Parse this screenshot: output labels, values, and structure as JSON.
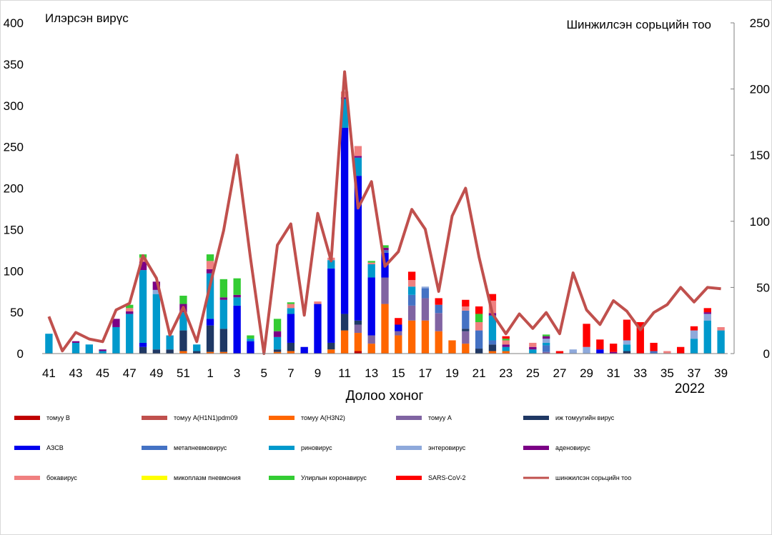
{
  "chart_data": {
    "type": "bar",
    "stacked": true,
    "title": "",
    "ylabel_left": "Илэрсэн вирүс",
    "ylabel_right": "Шинжилсэн сорьцийн тоо",
    "xlabel": "Долоо хоног",
    "year_label": "2022",
    "ylim_left": [
      0,
      400
    ],
    "yticks_left": [
      0,
      50,
      100,
      150,
      200,
      250,
      300,
      350,
      400
    ],
    "ylim_right": [
      0,
      250
    ],
    "yticks_right": [
      0,
      50,
      100,
      150,
      200,
      250
    ],
    "grid": false,
    "legend_position": "bottom",
    "categories": [
      "41",
      "42",
      "43",
      "44",
      "45",
      "46",
      "47",
      "48",
      "49",
      "50",
      "51",
      "52",
      "1",
      "2",
      "3",
      "4",
      "5",
      "6",
      "7",
      "8",
      "9",
      "10",
      "11",
      "12",
      "13",
      "14",
      "15",
      "16",
      "17",
      "18",
      "19",
      "20",
      "21",
      "22",
      "23",
      "24",
      "25",
      "26",
      "27",
      "28",
      "29",
      "30",
      "31",
      "32",
      "33",
      "34",
      "35",
      "36",
      "37",
      "38",
      "39"
    ],
    "x_tick_labels": [
      "41",
      "43",
      "45",
      "47",
      "49",
      "51",
      "1",
      "3",
      "5",
      "7",
      "9",
      "11",
      "13",
      "15",
      "17",
      "19",
      "21",
      "23",
      "25",
      "27",
      "29",
      "31",
      "33",
      "35",
      "37",
      "39"
    ],
    "series": [
      {
        "name": "томуу B",
        "color": "#c00000",
        "values": [
          0,
          0,
          0,
          0,
          0,
          0,
          0,
          0,
          0,
          0,
          0,
          0,
          0,
          0,
          0,
          0,
          0,
          0,
          0,
          0,
          0,
          0,
          0,
          3,
          0,
          0,
          0,
          0,
          0,
          0,
          0,
          0,
          0,
          0,
          0,
          0,
          0,
          0,
          0,
          0,
          0,
          0,
          0,
          0,
          0,
          0,
          0,
          0,
          0,
          0,
          0
        ]
      },
      {
        "name": "томуу A(H1N1)pdm09",
        "color": "#c0504d",
        "values": [
          0,
          0,
          0,
          0,
          0,
          0,
          0,
          0,
          0,
          0,
          0,
          0,
          0,
          0,
          0,
          0,
          0,
          0,
          0,
          0,
          0,
          0,
          0,
          0,
          0,
          0,
          0,
          0,
          0,
          0,
          0,
          0,
          0,
          0,
          0,
          0,
          0,
          0,
          0,
          0,
          0,
          0,
          0,
          0,
          0,
          0,
          0,
          0,
          0,
          0,
          0
        ]
      },
      {
        "name": "томуу A(H3N2)",
        "color": "#ff6600",
        "values": [
          0,
          0,
          0,
          0,
          0,
          0,
          0,
          0,
          0,
          0,
          3,
          0,
          2,
          2,
          0,
          0,
          0,
          2,
          3,
          0,
          0,
          5,
          28,
          22,
          12,
          60,
          22,
          40,
          40,
          27,
          16,
          12,
          0,
          3,
          3,
          0,
          0,
          0,
          0,
          0,
          0,
          0,
          0,
          0,
          0,
          0,
          0,
          0,
          0,
          0,
          0
        ]
      },
      {
        "name": "томуу A",
        "color": "#8064a2",
        "values": [
          0,
          0,
          0,
          0,
          0,
          0,
          0,
          0,
          0,
          0,
          0,
          0,
          0,
          0,
          0,
          0,
          0,
          0,
          0,
          0,
          0,
          0,
          0,
          10,
          10,
          32,
          5,
          18,
          27,
          22,
          0,
          15,
          0,
          0,
          0,
          0,
          0,
          2,
          0,
          0,
          0,
          0,
          0,
          0,
          0,
          0,
          0,
          0,
          0,
          0,
          0
        ]
      },
      {
        "name": "иж томуугийн вирус",
        "color": "#1f3864",
        "values": [
          0,
          0,
          0,
          0,
          0,
          0,
          0,
          8,
          5,
          5,
          25,
          3,
          32,
          28,
          0,
          0,
          0,
          3,
          10,
          0,
          0,
          8,
          20,
          5,
          0,
          0,
          0,
          0,
          0,
          0,
          0,
          3,
          6,
          8,
          0,
          0,
          0,
          0,
          0,
          0,
          0,
          0,
          0,
          3,
          0,
          0,
          0,
          0,
          0,
          0,
          0
        ]
      },
      {
        "name": "АЗСВ",
        "color": "#0000ee",
        "values": [
          0,
          0,
          0,
          0,
          0,
          0,
          0,
          5,
          0,
          0,
          0,
          0,
          8,
          0,
          58,
          15,
          0,
          0,
          35,
          8,
          60,
          90,
          225,
          175,
          70,
          30,
          8,
          0,
          0,
          0,
          0,
          0,
          0,
          0,
          0,
          0,
          0,
          0,
          0,
          0,
          0,
          5,
          0,
          0,
          0,
          0,
          0,
          0,
          0,
          0,
          0
        ]
      },
      {
        "name": "метапневмовирус",
        "color": "#4472c4",
        "values": [
          0,
          0,
          0,
          0,
          0,
          0,
          0,
          0,
          0,
          0,
          0,
          0,
          0,
          0,
          0,
          0,
          0,
          0,
          0,
          0,
          0,
          0,
          0,
          0,
          0,
          3,
          0,
          13,
          12,
          10,
          0,
          22,
          22,
          5,
          0,
          0,
          0,
          8,
          0,
          0,
          0,
          0,
          0,
          0,
          0,
          3,
          0,
          0,
          0,
          0,
          0
        ]
      },
      {
        "name": "риновирус",
        "color": "#0099cc",
        "values": [
          24,
          0,
          13,
          11,
          3,
          32,
          48,
          88,
          67,
          17,
          22,
          8,
          55,
          35,
          10,
          3,
          0,
          15,
          7,
          0,
          0,
          10,
          35,
          22,
          16,
          0,
          0,
          10,
          0,
          0,
          0,
          0,
          0,
          30,
          5,
          0,
          5,
          3,
          0,
          0,
          0,
          0,
          0,
          8,
          0,
          0,
          0,
          0,
          18,
          40,
          28
        ]
      },
      {
        "name": "энтеровирус",
        "color": "#8ea9db",
        "values": [
          0,
          0,
          0,
          0,
          0,
          0,
          0,
          0,
          5,
          0,
          0,
          0,
          0,
          0,
          0,
          0,
          0,
          0,
          0,
          0,
          0,
          0,
          0,
          0,
          0,
          0,
          0,
          0,
          2,
          0,
          0,
          0,
          0,
          0,
          0,
          0,
          0,
          5,
          0,
          5,
          8,
          0,
          0,
          5,
          0,
          0,
          0,
          0,
          10,
          8,
          0
        ]
      },
      {
        "name": "аденовирус",
        "color": "#7b0085",
        "values": [
          0,
          0,
          2,
          0,
          2,
          10,
          3,
          10,
          10,
          0,
          10,
          0,
          5,
          3,
          3,
          0,
          0,
          7,
          0,
          0,
          0,
          0,
          2,
          2,
          0,
          3,
          0,
          0,
          0,
          0,
          0,
          0,
          0,
          3,
          3,
          0,
          3,
          3,
          0,
          0,
          0,
          0,
          2,
          0,
          0,
          0,
          0,
          0,
          0,
          2,
          0
        ]
      },
      {
        "name": "бокавирус",
        "color": "#f08080",
        "values": [
          0,
          0,
          0,
          0,
          0,
          0,
          4,
          5,
          0,
          0,
          0,
          0,
          10,
          0,
          0,
          0,
          0,
          0,
          5,
          0,
          3,
          3,
          7,
          12,
          2,
          0,
          0,
          8,
          0,
          0,
          0,
          5,
          10,
          15,
          5,
          0,
          5,
          0,
          0,
          0,
          0,
          0,
          0,
          0,
          0,
          0,
          3,
          0,
          0,
          0,
          4
        ]
      },
      {
        "name": "микоплазм пневмония",
        "color": "#ffff00",
        "values": [
          0,
          0,
          0,
          0,
          0,
          0,
          0,
          0,
          0,
          0,
          0,
          0,
          0,
          0,
          0,
          0,
          0,
          0,
          0,
          0,
          0,
          0,
          0,
          0,
          0,
          0,
          0,
          0,
          0,
          0,
          0,
          0,
          0,
          0,
          0,
          0,
          0,
          0,
          0,
          0,
          0,
          0,
          0,
          0,
          0,
          0,
          0,
          0,
          0,
          0,
          0
        ]
      },
      {
        "name": "Улирлын коронавирус",
        "color": "#33cc33",
        "values": [
          0,
          0,
          0,
          0,
          0,
          0,
          4,
          4,
          0,
          0,
          10,
          0,
          8,
          22,
          20,
          4,
          0,
          15,
          2,
          0,
          0,
          0,
          0,
          0,
          2,
          3,
          0,
          0,
          0,
          0,
          0,
          0,
          10,
          0,
          2,
          0,
          0,
          2,
          0,
          0,
          0,
          0,
          0,
          0,
          0,
          0,
          0,
          0,
          0,
          0,
          0
        ]
      },
      {
        "name": "SARS-CoV-2",
        "color": "#ff0000",
        "values": [
          0,
          0,
          0,
          0,
          0,
          0,
          0,
          0,
          0,
          0,
          0,
          0,
          0,
          0,
          0,
          0,
          0,
          0,
          0,
          0,
          0,
          0,
          0,
          0,
          0,
          0,
          8,
          10,
          0,
          8,
          0,
          8,
          9,
          8,
          3,
          0,
          0,
          0,
          3,
          0,
          28,
          12,
          10,
          25,
          38,
          10,
          0,
          8,
          5,
          5,
          0
        ]
      }
    ],
    "line_series": {
      "name": "шинжилсэн сорьцийн тоо",
      "color": "#c0504d",
      "axis": "right",
      "values": [
        28,
        2,
        16,
        11,
        9,
        33,
        38,
        74,
        57,
        14,
        35,
        9,
        52,
        93,
        150,
        72,
        0,
        82,
        98,
        29,
        106,
        70,
        213,
        110,
        130,
        66,
        77,
        109,
        94,
        47,
        104,
        125,
        73,
        30,
        15,
        30,
        19,
        31,
        15,
        61,
        33,
        22,
        40,
        32,
        18,
        31,
        37,
        50,
        39,
        50,
        49
      ]
    }
  }
}
